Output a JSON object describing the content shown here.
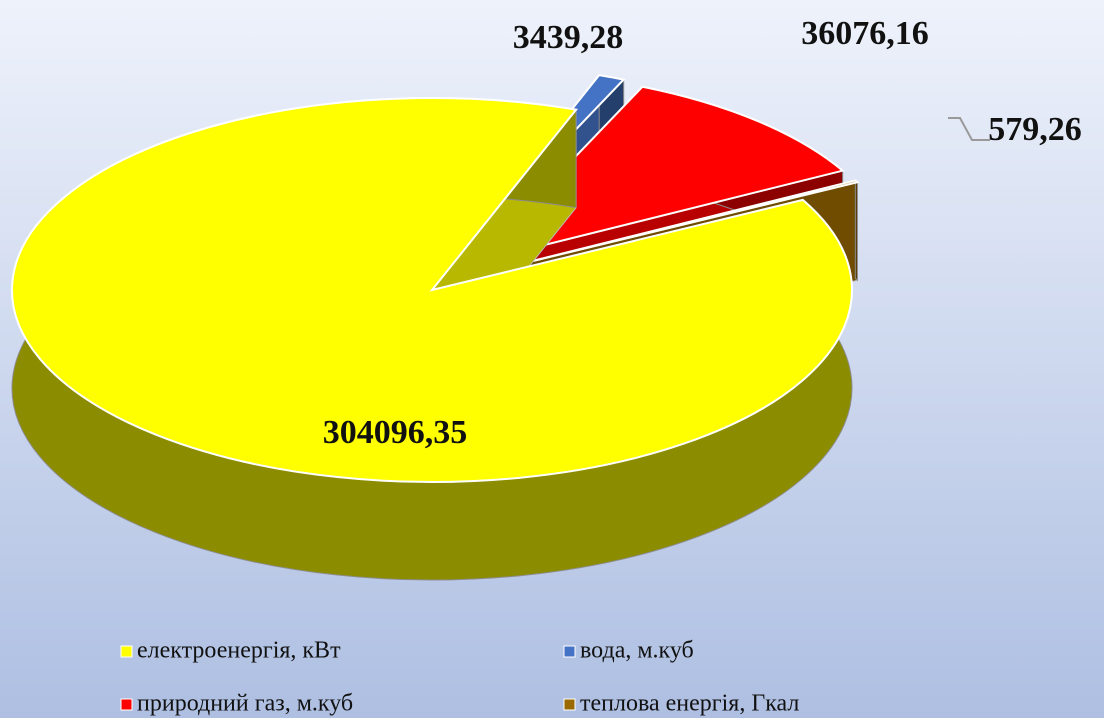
{
  "chart_data": {
    "type": "pie",
    "categories": [
      "електроенергія, кВт",
      "вода, м.куб",
      "природний газ, м.куб",
      "теплова енергія, Гкал"
    ],
    "values": [
      304096.35,
      3439.28,
      36076.16,
      579.26
    ],
    "value_labels": [
      "304096,35",
      "3439,28",
      "36076,16",
      "579,26"
    ],
    "colors": [
      "#ffff00",
      "#4472c4",
      "#ff0000",
      "#9a6a00"
    ]
  }
}
